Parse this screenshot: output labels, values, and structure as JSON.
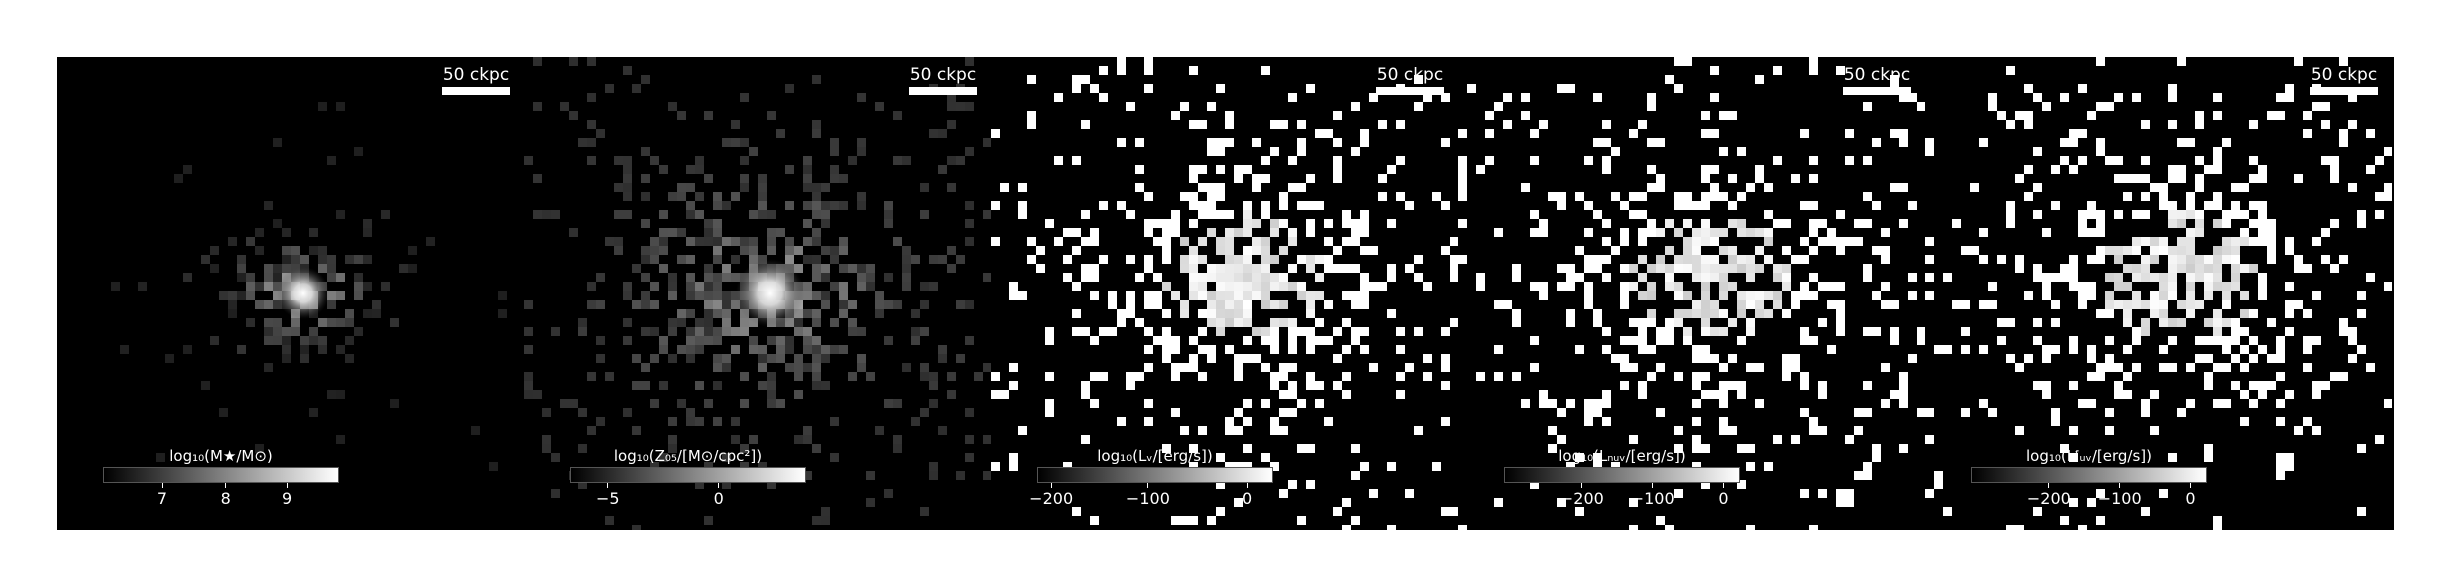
{
  "scale_label": "50 ckpc",
  "panels": [
    {
      "colorbar_title": "log₁₀(M★/M⊙)",
      "ticks": [
        {
          "label": "7",
          "frac": 0.25
        },
        {
          "label": "8",
          "frac": 0.52
        },
        {
          "label": "9",
          "frac": 0.78
        }
      ]
    },
    {
      "colorbar_title": "log₁₀(Z₀₅/[M⊙/cpc²])",
      "ticks": [
        {
          "label": "−5",
          "frac": 0.16
        },
        {
          "label": "0",
          "frac": 0.63
        }
      ]
    },
    {
      "colorbar_title": "log₁₀(Lᵥ/[erg/s])",
      "ticks": [
        {
          "label": "−200",
          "frac": 0.06
        },
        {
          "label": "−100",
          "frac": 0.47
        },
        {
          "label": "0",
          "frac": 0.89
        }
      ]
    },
    {
      "colorbar_title": "log₁₀(Lₙᵤᵥ/[erg/s])",
      "ticks": [
        {
          "label": "−200",
          "frac": 0.33
        },
        {
          "label": "−100",
          "frac": 0.63
        },
        {
          "label": "0",
          "frac": 0.93
        }
      ]
    },
    {
      "colorbar_title": "log₁₀(Lᶠᵤᵥ/[erg/s])",
      "ticks": [
        {
          "label": "−200",
          "frac": 0.33
        },
        {
          "label": "−100",
          "frac": 0.63
        },
        {
          "label": "0",
          "frac": 0.93
        }
      ]
    }
  ]
}
